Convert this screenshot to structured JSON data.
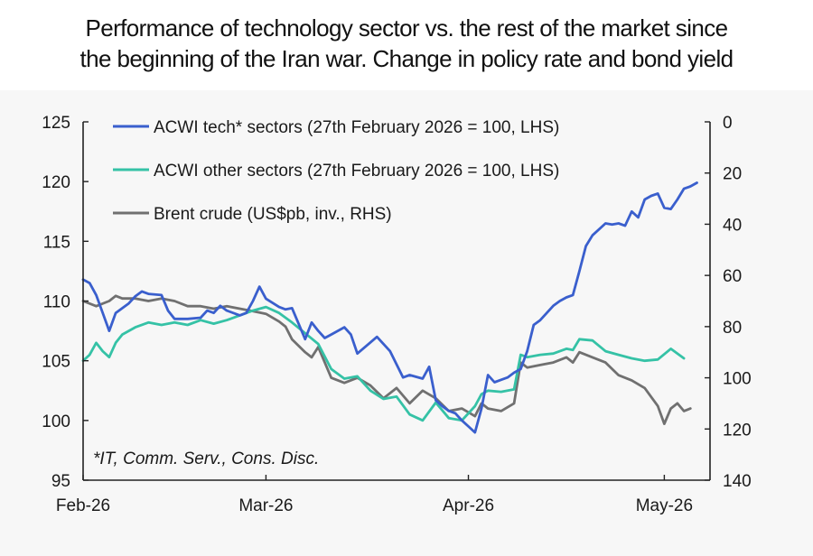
{
  "header": {
    "title_line1": "Performance of technology sector vs. the rest of the market since",
    "title_line2": "the beginning of the Iran war. Change in policy rate and bond yield"
  },
  "chart_data": {
    "type": "line",
    "title": "Performance of technology sector vs. the rest of the market since the beginning of the Iran war. Change in policy rate and bond yield",
    "note": "*IT, Comm. Serv., Cons. Disc.",
    "x_tick_labels": [
      "Feb-26",
      "Mar-26",
      "Apr-26",
      "May-26"
    ],
    "x_tick_positions": [
      0,
      28,
      59,
      89
    ],
    "x_range": [
      0,
      96
    ],
    "left_axis": {
      "range": [
        95,
        125
      ],
      "ticks": [
        95,
        100,
        105,
        110,
        115,
        120,
        125
      ]
    },
    "right_axis": {
      "range": [
        0,
        140
      ],
      "inverted": true,
      "ticks": [
        0,
        20,
        40,
        60,
        80,
        100,
        120,
        140
      ]
    },
    "legend_placement": "top",
    "series": [
      {
        "name": "ACWI tech* sectors (27th February 2026 = 100, LHS)",
        "axis": "left",
        "color": "#3a5fcd",
        "x": [
          0,
          1,
          2,
          3,
          4,
          5,
          7,
          8,
          9,
          10,
          12,
          13,
          14,
          16,
          18,
          19,
          20,
          21,
          22,
          24,
          25,
          26,
          27,
          28,
          30,
          31,
          32,
          34,
          35,
          36,
          37,
          38,
          40,
          41,
          42,
          45,
          46,
          47,
          49,
          50,
          52,
          53,
          54,
          55,
          56,
          57,
          58,
          59,
          60,
          61,
          62,
          63,
          64,
          65,
          66,
          67,
          68,
          69,
          70,
          71,
          72,
          73,
          74,
          75,
          76,
          77,
          78,
          80,
          81,
          82,
          83,
          84,
          85,
          86,
          87,
          88,
          89,
          90,
          91,
          92,
          93,
          94
        ],
        "y": [
          111.8,
          111.5,
          110.5,
          109.0,
          107.5,
          109.0,
          109.8,
          110.4,
          110.8,
          110.6,
          110.5,
          109.2,
          108.5,
          108.5,
          108.6,
          109.2,
          109.0,
          109.6,
          109.2,
          108.8,
          109.0,
          110.0,
          111.2,
          110.2,
          109.5,
          109.3,
          109.4,
          106.8,
          108.2,
          107.5,
          106.9,
          107.2,
          107.8,
          107.2,
          105.6,
          107.0,
          106.4,
          105.8,
          103.6,
          103.8,
          103.5,
          104.5,
          101.7,
          101.2,
          100.8,
          100.6,
          100.0,
          99.5,
          99.0,
          101.0,
          103.8,
          103.2,
          103.4,
          103.6,
          104.0,
          104.3,
          105.8,
          108.0,
          108.4,
          109.0,
          109.6,
          110.0,
          110.3,
          110.5,
          112.5,
          114.6,
          115.5,
          116.5,
          116.4,
          116.5,
          116.3,
          117.5,
          117.0,
          118.5,
          118.8,
          119.0,
          117.8,
          117.7,
          118.5,
          119.4,
          119.6,
          119.9
        ]
      },
      {
        "name": "ACWI other sectors (27th February 2026 = 100, LHS)",
        "axis": "left",
        "color": "#35c2a6",
        "x": [
          0,
          1,
          2,
          3,
          4,
          5,
          6,
          8,
          10,
          12,
          14,
          16,
          18,
          20,
          22,
          24,
          26,
          28,
          30,
          32,
          34,
          36,
          38,
          40,
          42,
          44,
          46,
          48,
          50,
          52,
          54,
          56,
          58,
          60,
          61,
          62,
          64,
          66,
          67,
          68,
          70,
          72,
          74,
          75,
          76,
          78,
          80,
          82,
          84,
          86,
          88,
          90,
          92
        ],
        "y": [
          105.0,
          105.5,
          106.5,
          105.8,
          105.3,
          106.5,
          107.2,
          107.8,
          108.2,
          108.0,
          108.2,
          108.0,
          108.4,
          108.1,
          108.4,
          108.8,
          109.2,
          109.5,
          109.0,
          108.2,
          107.3,
          106.4,
          104.3,
          103.5,
          103.7,
          102.5,
          101.8,
          102.0,
          100.5,
          100.0,
          101.5,
          100.2,
          100.0,
          101.2,
          102.2,
          102.5,
          102.4,
          102.6,
          105.5,
          105.3,
          105.5,
          105.6,
          106.0,
          105.9,
          106.8,
          106.7,
          105.8,
          105.5,
          105.2,
          105.0,
          105.1,
          106.0,
          105.2
        ]
      },
      {
        "name": "Brent crude (US$pb, inv., RHS)",
        "axis": "right",
        "color": "#707070",
        "x": [
          0,
          2,
          4,
          5,
          6,
          8,
          10,
          12,
          14,
          16,
          18,
          20,
          22,
          24,
          26,
          28,
          30,
          31,
          32,
          34,
          35,
          36,
          38,
          40,
          42,
          44,
          46,
          48,
          50,
          52,
          54,
          56,
          58,
          60,
          61,
          62,
          64,
          66,
          67,
          68,
          70,
          72,
          74,
          75,
          76,
          78,
          80,
          82,
          84,
          86,
          88,
          89,
          90,
          91,
          92,
          93
        ],
        "y": [
          70,
          72,
          70,
          68,
          69,
          69,
          70,
          69,
          70,
          72,
          72,
          73,
          72,
          73,
          74,
          75,
          78,
          80,
          85,
          90,
          92,
          88,
          100,
          102,
          100,
          103,
          108,
          104,
          110,
          105,
          108,
          113,
          112,
          115,
          110,
          112,
          113,
          110,
          94,
          96,
          95,
          94,
          92,
          94,
          90,
          92,
          94,
          99,
          101,
          104,
          111,
          118,
          112,
          110,
          113,
          112
        ]
      }
    ]
  }
}
